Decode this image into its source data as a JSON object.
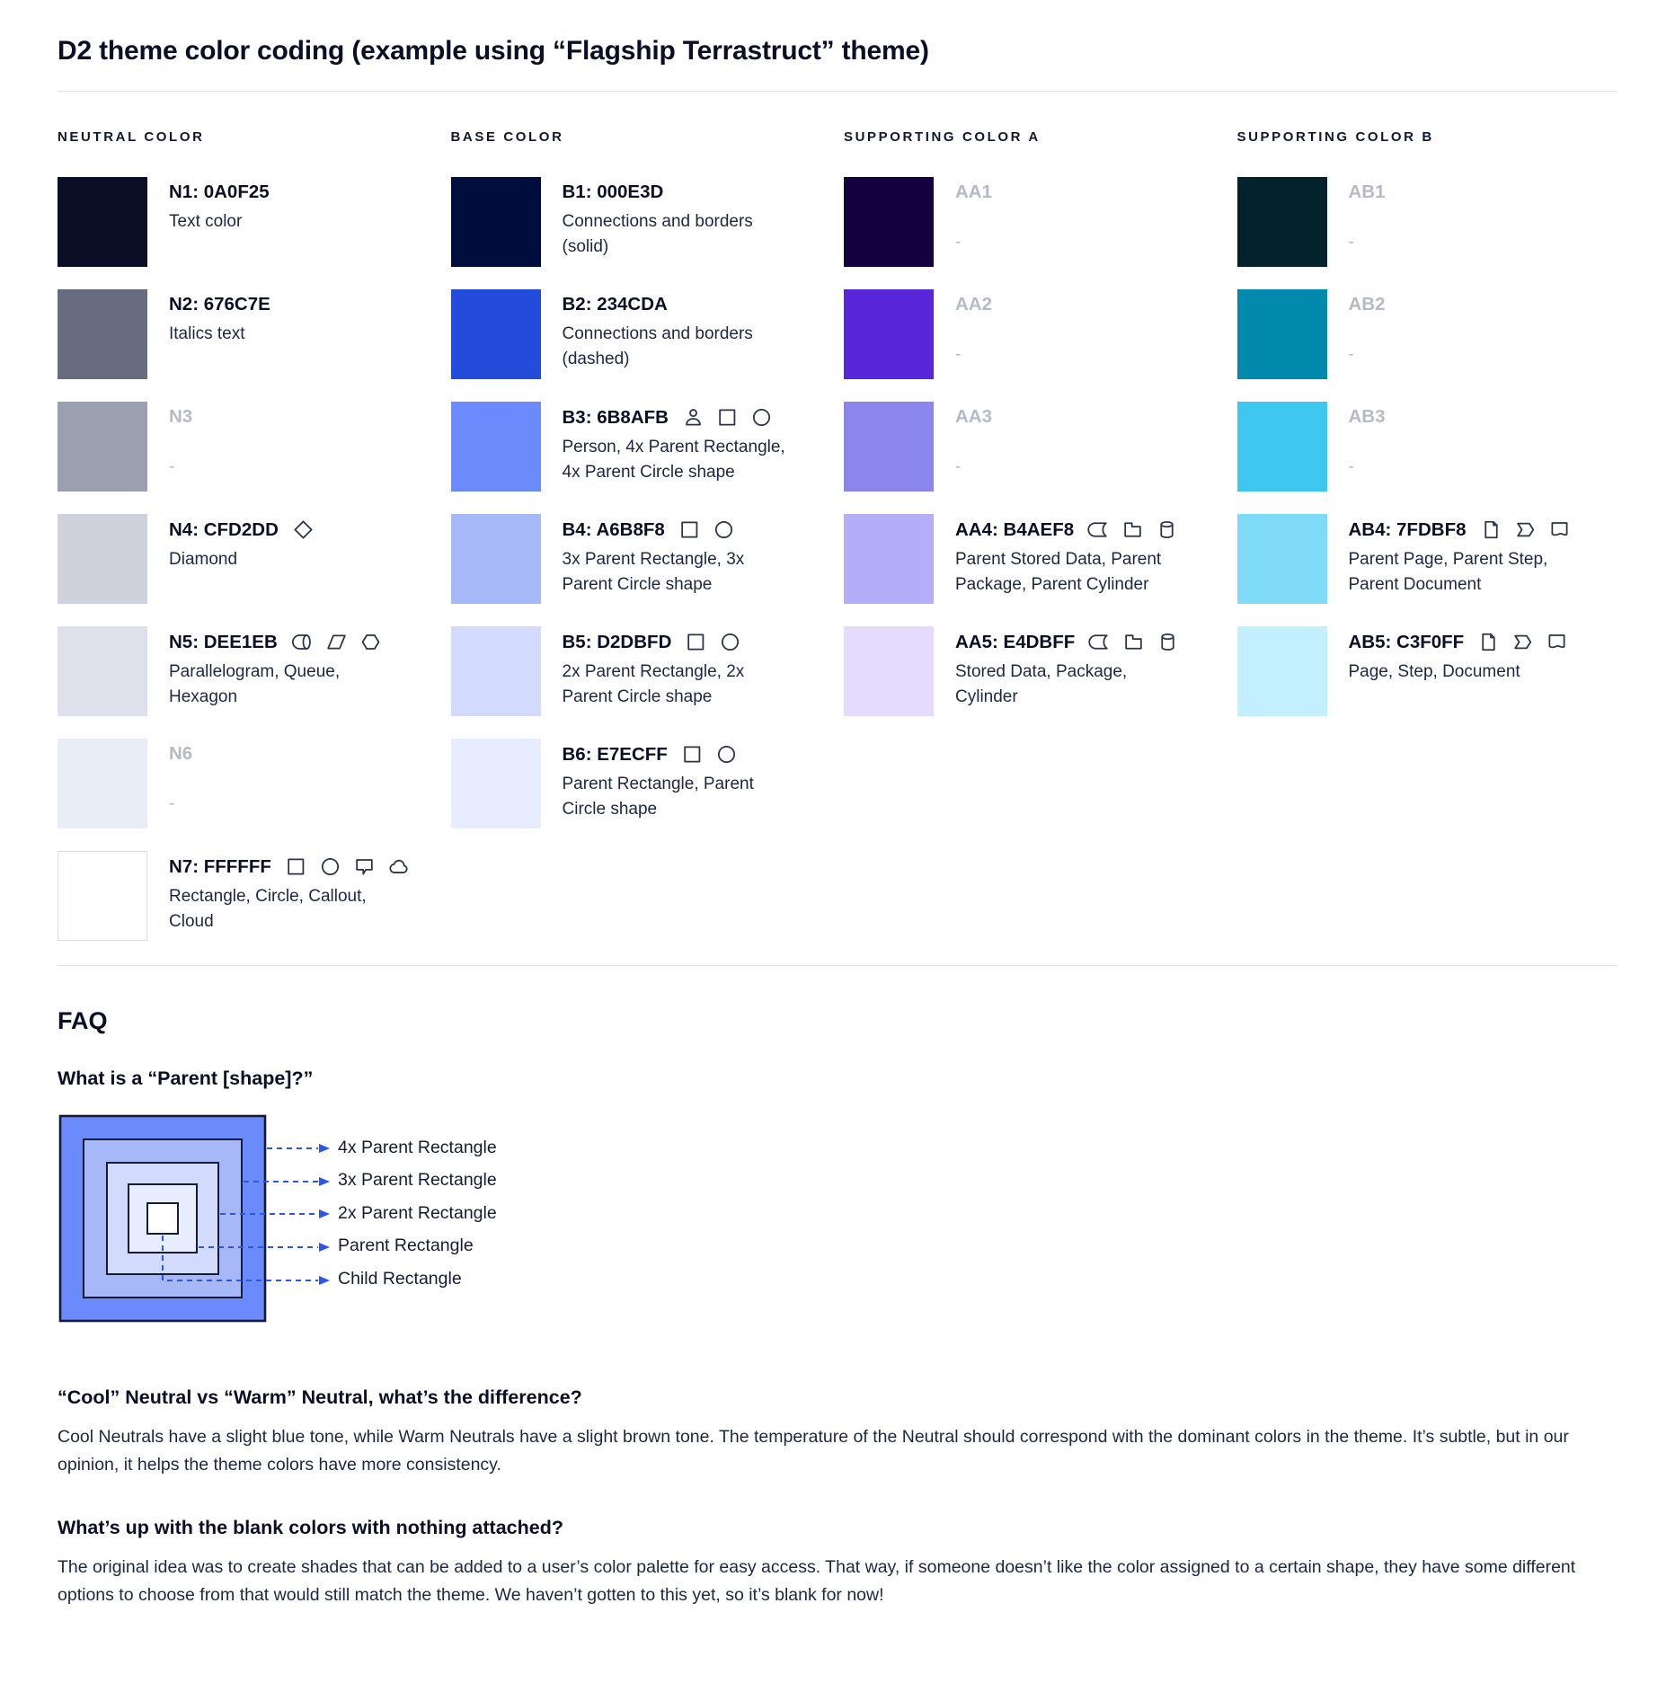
{
  "title": "D2 theme color coding (example using “Flagship Terrastruct” theme)",
  "palette": {
    "columns": [
      {
        "header": "NEUTRAL COLOR",
        "items": [
          {
            "label": "N1: 0A0F25",
            "color": "#0A0F25",
            "desc": "Text color",
            "icons": [],
            "blank": false,
            "bordered": false
          },
          {
            "label": "N2: 676C7E",
            "color": "#676C7E",
            "desc": "Italics text",
            "icons": [],
            "blank": false,
            "bordered": false
          },
          {
            "label": "N3",
            "color": "#9AA0B0",
            "desc": "-",
            "icons": [],
            "blank": true,
            "bordered": false
          },
          {
            "label": "N4: CFD2DD",
            "color": "#CFD2DD",
            "desc": "Diamond",
            "icons": [
              "diamond"
            ],
            "blank": false,
            "bordered": false
          },
          {
            "label": "N5: DEE1EB",
            "color": "#DEE1EB",
            "desc": "Parallelogram, Queue, Hexagon",
            "icons": [
              "queue",
              "parallelogram",
              "hexagon"
            ],
            "blank": false,
            "bordered": false
          },
          {
            "label": "N6",
            "color": "#E9EDF5",
            "desc": "-",
            "icons": [],
            "blank": true,
            "bordered": false
          },
          {
            "label": "N7: FFFFFF",
            "color": "#FFFFFF",
            "desc": "Rectangle, Circle, Callout, Cloud",
            "icons": [
              "rectangle",
              "circle",
              "callout",
              "cloud"
            ],
            "blank": false,
            "bordered": true
          }
        ]
      },
      {
        "header": "BASE COLOR",
        "items": [
          {
            "label": "B1: 000E3D",
            "color": "#000E3D",
            "desc": "Connections and borders (solid)",
            "icons": [],
            "blank": false,
            "bordered": false
          },
          {
            "label": "B2: 234CDA",
            "color": "#234CDA",
            "desc": "Connections and borders (dashed)",
            "icons": [],
            "blank": false,
            "bordered": false
          },
          {
            "label": "B3: 6B8AFB",
            "color": "#6B8AFB",
            "desc": "Person, 4x Parent Rectangle, 4x Parent Circle shape",
            "icons": [
              "person",
              "rectangle",
              "circle"
            ],
            "blank": false,
            "bordered": false
          },
          {
            "label": "B4: A6B8F8",
            "color": "#A6B8F8",
            "desc": "3x Parent Rectangle, 3x Parent Circle shape",
            "icons": [
              "rectangle",
              "circle"
            ],
            "blank": false,
            "bordered": false
          },
          {
            "label": "B5: D2DBFD",
            "color": "#D2DBFD",
            "desc": "2x Parent Rectangle, 2x Parent Circle shape",
            "icons": [
              "rectangle",
              "circle"
            ],
            "blank": false,
            "bordered": false
          },
          {
            "label": "B6: E7ECFF",
            "color": "#E7ECFF",
            "desc": "Parent Rectangle, Parent Circle shape",
            "icons": [
              "rectangle",
              "circle"
            ],
            "blank": false,
            "bordered": false
          }
        ]
      },
      {
        "header": "SUPPORTING COLOR A",
        "items": [
          {
            "label": "AA1",
            "color": "#14003F",
            "desc": "-",
            "icons": [],
            "blank": true,
            "bordered": false
          },
          {
            "label": "AA2",
            "color": "#5626D8",
            "desc": "-",
            "icons": [],
            "blank": true,
            "bordered": false
          },
          {
            "label": "AA3",
            "color": "#8B85EE",
            "desc": "-",
            "icons": [],
            "blank": true,
            "bordered": false
          },
          {
            "label": "AA4: B4AEF8",
            "color": "#B4AEF8",
            "desc": "Parent Stored Data, Parent Package, Parent Cylinder",
            "icons": [
              "stored-data",
              "package",
              "cylinder"
            ],
            "blank": false,
            "bordered": false
          },
          {
            "label": "AA5: E4DBFF",
            "color": "#E4DBFF",
            "desc": "Stored Data, Package, Cylinder",
            "icons": [
              "stored-data",
              "package",
              "cylinder"
            ],
            "blank": false,
            "bordered": false
          }
        ]
      },
      {
        "header": "SUPPORTING COLOR B",
        "items": [
          {
            "label": "AB1",
            "color": "#03222B",
            "desc": "-",
            "icons": [],
            "blank": true,
            "bordered": false
          },
          {
            "label": "AB2",
            "color": "#0189AE",
            "desc": "-",
            "icons": [],
            "blank": true,
            "bordered": false
          },
          {
            "label": "AB3",
            "color": "#3EC7EF",
            "desc": "-",
            "icons": [],
            "blank": true,
            "bordered": false
          },
          {
            "label": "AB4: 7FDBF8",
            "color": "#7FDBF8",
            "desc": "Parent Page, Parent Step, Parent Document",
            "icons": [
              "page",
              "step",
              "document"
            ],
            "blank": false,
            "bordered": false
          },
          {
            "label": "AB5: C3F0FF",
            "color": "#C3F0FF",
            "desc": "Page, Step, Document",
            "icons": [
              "page",
              "step",
              "document"
            ],
            "blank": false,
            "bordered": false
          }
        ]
      }
    ]
  },
  "faq": {
    "heading": "FAQ",
    "q1": {
      "question": "What is a “Parent [shape]?”",
      "diagram_labels": [
        "4x Parent Rectangle",
        "3x Parent Rectangle",
        "2x Parent Rectangle",
        "Parent Rectangle",
        "Child Rectangle"
      ]
    },
    "parent_diagram": {
      "colors": [
        "#6B8AFB",
        "#A6B8F8",
        "#D2DBFD",
        "#E7ECFF",
        "#FFFFFF"
      ],
      "arrow_color": "#2B57E3"
    },
    "q2": {
      "question": "“Cool” Neutral vs “Warm” Neutral, what’s the difference?",
      "answer": "Cool Neutrals have a slight blue tone, while Warm Neutrals have a slight brown tone. The temperature of the Neutral should correspond with the dominant colors in the theme. It’s subtle, but in our opinion, it helps the theme colors have more consistency."
    },
    "q3": {
      "question": "What’s up with the blank colors with nothing attached?",
      "answer": "The original idea was to create shades that can be added to a user’s color palette for easy access. That way, if someone doesn’t like the color assigned to a certain shape, they have some different options to choose from that would still match the theme. We haven’t gotten to this yet, so it’s blank for now!"
    }
  }
}
